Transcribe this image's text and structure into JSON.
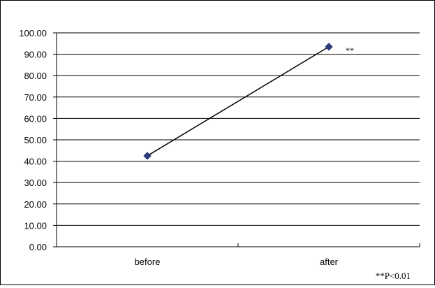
{
  "chart_data": {
    "type": "line",
    "categories": [
      "before",
      "after"
    ],
    "series": [
      {
        "values": [
          42.5,
          93.5
        ],
        "marker": "diamond",
        "line_color": "#000000",
        "marker_color": "#2E3A78"
      }
    ],
    "ylim": [
      0,
      100
    ],
    "yticks": [
      "0.00",
      "10.00",
      "20.00",
      "30.00",
      "40.00",
      "50.00",
      "60.00",
      "70.00",
      "80.00",
      "90.00",
      "100.00"
    ],
    "grid": true,
    "annotations": {
      "after_point": "**"
    },
    "footnote": "**P<0.01",
    "title": "",
    "xlabel": "",
    "ylabel": ""
  }
}
